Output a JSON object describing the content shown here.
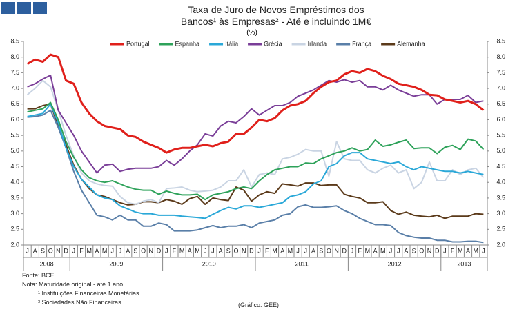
{
  "chart_data": {
    "type": "line",
    "title": "Taxa de Juro de Novos Empréstimos dos Bancos¹ às Empresas² - Até e incluindo 1M€",
    "subtitle": "(%)",
    "categories": [
      "J",
      "A",
      "S",
      "O",
      "N",
      "D",
      "J",
      "F",
      "M",
      "A",
      "M",
      "J",
      "J",
      "A",
      "S",
      "O",
      "N",
      "D",
      "J",
      "F",
      "M",
      "A",
      "M",
      "J",
      "J",
      "A",
      "S",
      "O",
      "N",
      "D",
      "J",
      "F",
      "M",
      "A",
      "M",
      "J",
      "J",
      "A",
      "S",
      "O",
      "N",
      "D",
      "J",
      "F",
      "M",
      "A",
      "M",
      "J",
      "J",
      "A",
      "S",
      "O",
      "N",
      "D",
      "J",
      "F",
      "M",
      "A",
      "M",
      "J"
    ],
    "groups": [
      {
        "label": "2008",
        "count": 6
      },
      {
        "label": "2009",
        "count": 12
      },
      {
        "label": "2010",
        "count": 12
      },
      {
        "label": "2011",
        "count": 12
      },
      {
        "label": "2012",
        "count": 12
      },
      {
        "label": "2013",
        "count": 6
      }
    ],
    "ylim": [
      2,
      8.5
    ],
    "yticks": [
      {
        "value": 2,
        "label": "2.0"
      },
      2.5,
      {
        "value": 3,
        "label": "3.0"
      },
      3.5,
      {
        "value": 4,
        "label": "4.0"
      },
      4.5,
      {
        "value": 5,
        "label": "5.0"
      },
      5.5,
      {
        "value": 6,
        "label": "6.0"
      },
      6.5,
      {
        "value": 7,
        "label": "7.0"
      },
      7.5,
      {
        "value": 8,
        "label": "8.0"
      },
      8.5
    ],
    "right_axis": true,
    "legend": "top",
    "series": [
      {
        "name": "Portugal",
        "color": "#e0201b",
        "values": [
          7.78,
          7.92,
          7.85,
          8.08,
          8.0,
          7.25,
          7.15,
          6.55,
          6.2,
          5.95,
          5.8,
          5.75,
          5.7,
          5.5,
          5.45,
          5.3,
          5.2,
          5.1,
          4.95,
          5.05,
          5.1,
          5.1,
          5.15,
          5.2,
          5.15,
          5.25,
          5.3,
          5.55,
          5.55,
          5.75,
          6.0,
          5.95,
          6.05,
          6.3,
          6.45,
          6.5,
          6.6,
          6.85,
          7.05,
          7.2,
          7.25,
          7.45,
          7.55,
          7.5,
          7.62,
          7.55,
          7.4,
          7.3,
          7.15,
          7.1,
          7.05,
          6.95,
          6.8,
          6.78,
          6.65,
          6.6,
          6.55,
          6.6,
          6.5,
          6.3
        ]
      },
      {
        "name": "Espanha",
        "color": "#2ea25a",
        "values": [
          6.25,
          6.3,
          6.35,
          6.55,
          6.0,
          5.3,
          4.8,
          4.4,
          4.15,
          4.05,
          4.0,
          4.05,
          3.95,
          3.85,
          3.78,
          3.75,
          3.75,
          3.62,
          3.72,
          3.65,
          3.6,
          3.6,
          3.62,
          3.45,
          3.6,
          3.65,
          3.7,
          3.8,
          3.85,
          3.8,
          4.05,
          4.25,
          4.4,
          4.45,
          4.5,
          4.5,
          4.62,
          4.6,
          4.75,
          4.85,
          4.95,
          5.0,
          5.1,
          5.0,
          5.05,
          5.35,
          5.15,
          5.2,
          5.28,
          5.35,
          5.08,
          5.1,
          5.1,
          4.92,
          5.12,
          5.18,
          5.05,
          5.38,
          5.32,
          5.05
        ]
      },
      {
        "name": "Itália",
        "color": "#2aa8d8",
        "values": [
          6.1,
          6.15,
          6.2,
          6.5,
          5.9,
          5.1,
          4.5,
          4.1,
          3.85,
          3.6,
          3.5,
          3.45,
          3.25,
          3.15,
          3.05,
          3.0,
          3.0,
          2.95,
          2.95,
          2.95,
          2.92,
          2.9,
          2.88,
          2.85,
          2.98,
          3.1,
          3.2,
          3.15,
          3.25,
          3.25,
          3.2,
          3.25,
          3.3,
          3.35,
          3.55,
          3.6,
          3.7,
          3.95,
          4.05,
          4.5,
          4.6,
          4.85,
          4.95,
          4.95,
          4.75,
          4.7,
          4.65,
          4.6,
          4.65,
          4.5,
          4.4,
          4.5,
          4.45,
          4.4,
          4.35,
          4.35,
          4.3,
          4.35,
          4.3,
          4.25
        ]
      },
      {
        "name": "Grécia",
        "color": "#7a3e98",
        "values": [
          7.05,
          7.15,
          7.3,
          7.42,
          6.3,
          5.9,
          5.5,
          5.0,
          4.65,
          4.3,
          4.55,
          4.58,
          4.35,
          4.42,
          4.45,
          4.45,
          4.45,
          4.5,
          4.7,
          4.55,
          4.75,
          5.0,
          5.2,
          5.55,
          5.48,
          5.8,
          5.95,
          5.9,
          6.1,
          6.35,
          6.15,
          6.3,
          6.45,
          6.45,
          6.55,
          6.75,
          6.85,
          6.95,
          7.1,
          7.25,
          7.2,
          7.28,
          7.2,
          7.25,
          7.05,
          7.05,
          6.95,
          7.1,
          6.95,
          6.85,
          6.75,
          6.8,
          6.8,
          6.5,
          6.65,
          6.65,
          6.65,
          6.78,
          6.55,
          6.6
        ]
      },
      {
        "name": "Irlanda",
        "color": "#c9d4e3",
        "values": [
          6.8,
          7.0,
          7.25,
          7.05,
          6.3,
          5.5,
          4.85,
          4.3,
          4.05,
          3.95,
          3.9,
          3.88,
          3.55,
          3.35,
          3.3,
          3.4,
          3.45,
          3.35,
          3.8,
          3.82,
          3.85,
          3.75,
          3.7,
          3.72,
          3.75,
          3.85,
          4.05,
          4.05,
          4.4,
          3.85,
          4.25,
          4.3,
          4.25,
          4.75,
          4.8,
          4.9,
          5.05,
          5.0,
          5.0,
          4.2,
          5.3,
          4.75,
          4.7,
          4.7,
          4.4,
          4.3,
          4.45,
          4.55,
          4.3,
          4.4,
          3.8,
          4.0,
          4.65,
          4.05,
          4.05,
          4.4,
          4.25,
          4.4,
          4.45,
          4.15
        ]
      },
      {
        "name": "França",
        "color": "#5a7fa8",
        "values": [
          6.08,
          6.1,
          6.15,
          6.3,
          5.75,
          5.1,
          4.35,
          3.75,
          3.35,
          2.95,
          2.9,
          2.8,
          2.95,
          2.8,
          2.8,
          2.6,
          2.6,
          2.7,
          2.65,
          2.45,
          2.45,
          2.45,
          2.48,
          2.55,
          2.62,
          2.55,
          2.6,
          2.6,
          2.65,
          2.55,
          2.7,
          2.75,
          2.8,
          2.95,
          3.0,
          3.22,
          3.28,
          3.2,
          3.2,
          3.22,
          3.25,
          3.1,
          3.0,
          2.85,
          2.75,
          2.65,
          2.65,
          2.62,
          2.4,
          2.3,
          2.25,
          2.22,
          2.22,
          2.15,
          2.15,
          2.1,
          2.1,
          2.12,
          2.12,
          2.08
        ]
      },
      {
        "name": "Alemanha",
        "color": "#5b3a1a",
        "values": [
          6.35,
          6.35,
          6.45,
          6.5,
          5.8,
          5.2,
          4.55,
          4.1,
          3.8,
          3.6,
          3.55,
          3.45,
          3.35,
          3.28,
          3.3,
          3.38,
          3.38,
          3.35,
          3.45,
          3.4,
          3.3,
          3.48,
          3.55,
          3.3,
          3.5,
          3.45,
          3.42,
          3.85,
          3.75,
          3.4,
          3.6,
          3.7,
          3.65,
          3.95,
          3.92,
          3.88,
          3.98,
          3.98,
          3.9,
          3.92,
          3.92,
          3.62,
          3.55,
          3.5,
          3.35,
          3.35,
          3.38,
          3.1,
          2.98,
          3.05,
          2.95,
          2.92,
          2.9,
          2.95,
          2.85,
          2.92,
          2.92,
          2.92,
          3.0,
          2.98
        ]
      }
    ]
  },
  "notes": {
    "source": "Fonte: BCE",
    "note": "Nota: Maturidade original - até 1 ano",
    "footnote1": "¹ Instituições Financeiras Monetárias",
    "footnote2": "² Sociedades Não Financeiras",
    "credit": "(Gráfico: GEE)"
  }
}
